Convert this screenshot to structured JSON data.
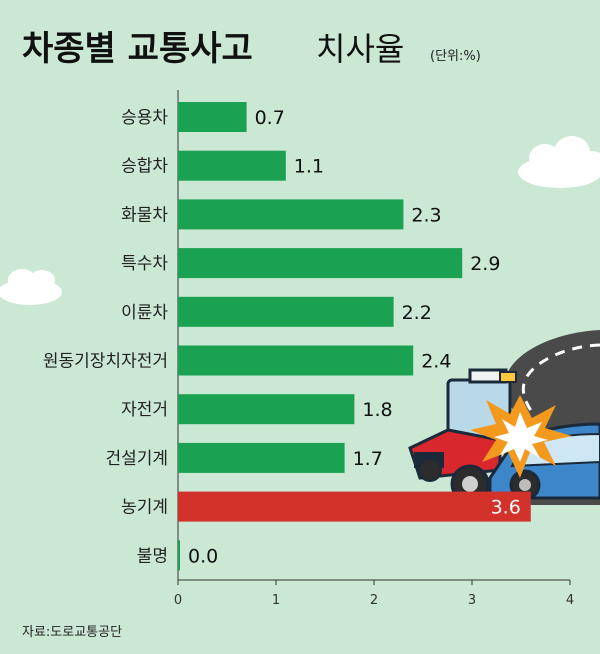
{
  "header": {
    "title_bold": "차종별 교통사고",
    "title_light": "치사율",
    "unit": "(단위:%)"
  },
  "chart_data": {
    "type": "bar",
    "orientation": "horizontal",
    "categories": [
      "승용차",
      "승합차",
      "화물차",
      "특수차",
      "이륜차",
      "원동기장치자전거",
      "자전거",
      "건설기계",
      "농기계",
      "불명"
    ],
    "values": [
      0.7,
      1.1,
      2.3,
      2.9,
      2.2,
      2.4,
      1.8,
      1.7,
      3.6,
      0.0
    ],
    "value_labels": [
      "0.7",
      "1.1",
      "2.3",
      "2.9",
      "2.2",
      "2.4",
      "1.8",
      "1.7",
      "3.6",
      "0.0"
    ],
    "xlim": [
      0,
      4
    ],
    "xticks": [
      "0",
      "1",
      "2",
      "3",
      "4"
    ],
    "bar_color": "#1aa151",
    "highlight_index": 8,
    "highlight_color": "#d3322a"
  },
  "footer": {
    "source": "자료:도로교통공단"
  }
}
